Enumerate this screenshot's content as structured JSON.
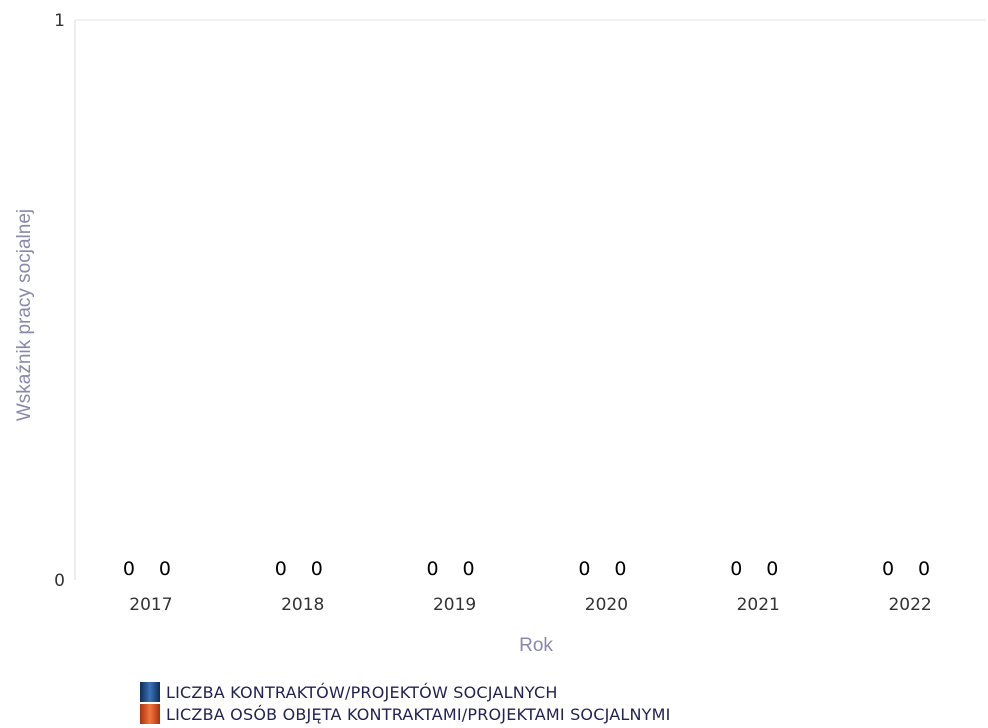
{
  "chart_data": {
    "type": "bar",
    "title": "",
    "xlabel": "Rok",
    "ylabel": "Wskaźnik pracy socjalnej",
    "categories": [
      "2017",
      "2018",
      "2019",
      "2020",
      "2021",
      "2022"
    ],
    "ylim": [
      0,
      1
    ],
    "yticks": [
      "0",
      "1"
    ],
    "grid": false,
    "legend_position": "bottom",
    "series": [
      {
        "name": "LICZBA KONTRAKTÓW/PROJEKTÓW SOCJALNYCH",
        "values": [
          0,
          0,
          0,
          0,
          0,
          0
        ],
        "color": "#1f4e8c"
      },
      {
        "name": "LICZBA OSÓB OBJĘTA KONTRAKTAMI/PROJEKTAMI SOCJALNYMI",
        "values": [
          0,
          0,
          0,
          0,
          0,
          0
        ],
        "color": "#e8561f"
      }
    ]
  }
}
